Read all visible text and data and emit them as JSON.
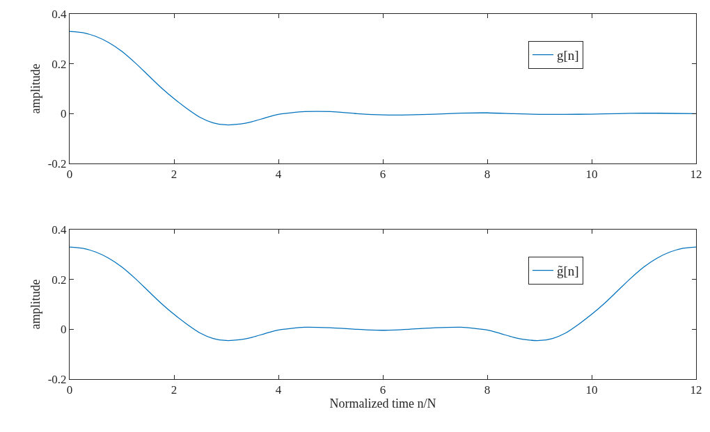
{
  "chart_data": [
    {
      "type": "line",
      "ylabel": "amplitude",
      "xlim": [
        0,
        12
      ],
      "ylim": [
        -0.2,
        0.4
      ],
      "xticks": [
        0,
        2,
        4,
        6,
        8,
        10,
        12
      ],
      "yticks": [
        -0.2,
        0,
        0.2,
        0.4
      ],
      "legend": "top right",
      "line_style": "solid",
      "marker": "none",
      "x": [
        0,
        0.25,
        0.5,
        0.75,
        1,
        1.25,
        1.5,
        1.75,
        2,
        2.25,
        2.5,
        2.75,
        3,
        3.25,
        3.5,
        3.75,
        4,
        4.5,
        5,
        5.5,
        6,
        6.5,
        7,
        7.5,
        8,
        8.5,
        9,
        9.5,
        10,
        10.5,
        11,
        11.5,
        12
      ],
      "series": [
        {
          "name": "g[n]",
          "color": "#0072bd",
          "values": [
            0.33,
            0.325,
            0.31,
            0.285,
            0.25,
            0.205,
            0.155,
            0.105,
            0.06,
            0.02,
            -0.015,
            -0.037,
            -0.045,
            -0.042,
            -0.032,
            -0.017,
            -0.003,
            0.008,
            0.008,
            0.0,
            -0.005,
            -0.005,
            -0.002,
            0.002,
            0.003,
            0.0,
            -0.003,
            -0.003,
            -0.002,
            0.0,
            0.002,
            0.001,
            0.0
          ]
        }
      ]
    },
    {
      "type": "line",
      "xlabel": "Normalized time n/N",
      "ylabel": "amplitude",
      "xlim": [
        0,
        12
      ],
      "ylim": [
        -0.2,
        0.4
      ],
      "xticks": [
        0,
        2,
        4,
        6,
        8,
        10,
        12
      ],
      "yticks": [
        -0.2,
        0,
        0.2,
        0.4
      ],
      "legend": "top right",
      "line_style": "solid",
      "marker": "none",
      "x": [
        0,
        0.25,
        0.5,
        0.75,
        1,
        1.25,
        1.5,
        1.75,
        2,
        2.25,
        2.5,
        2.75,
        3,
        3.25,
        3.5,
        3.75,
        4,
        4.5,
        5,
        5.5,
        6,
        6.5,
        7,
        7.5,
        8,
        8.25,
        8.5,
        8.75,
        9,
        9.25,
        9.5,
        9.75,
        10,
        10.25,
        10.5,
        10.75,
        11,
        11.25,
        11.5,
        11.75,
        12
      ],
      "series": [
        {
          "name": "g̃[n]",
          "color": "#0072bd",
          "values": [
            0.33,
            0.325,
            0.31,
            0.285,
            0.25,
            0.205,
            0.155,
            0.105,
            0.06,
            0.02,
            -0.015,
            -0.037,
            -0.045,
            -0.042,
            -0.032,
            -0.017,
            -0.003,
            0.008,
            0.006,
            0.0,
            -0.004,
            0.0,
            0.006,
            0.008,
            -0.003,
            -0.017,
            -0.032,
            -0.042,
            -0.045,
            -0.037,
            -0.015,
            0.02,
            0.06,
            0.105,
            0.155,
            0.205,
            0.25,
            0.285,
            0.31,
            0.325,
            0.33
          ]
        }
      ]
    }
  ]
}
